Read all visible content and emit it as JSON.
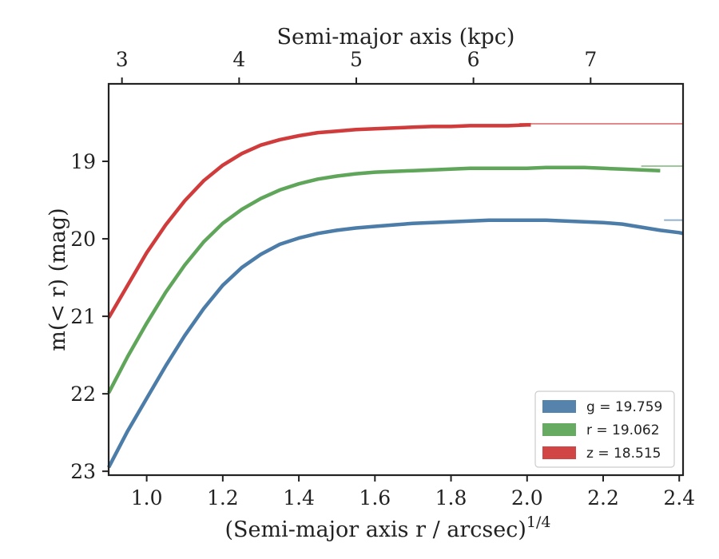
{
  "chart_data": {
    "type": "line",
    "xlabel_top": "Semi-major axis (kpc)",
    "xlabel_bottom": "(Semi-major axis r / arcsec)",
    "xlabel_bottom_sup": "1/4",
    "ylabel": "m(< r) (mag)",
    "xlim": [
      0.9,
      2.41
    ],
    "ylim": [
      23.05,
      18.0
    ],
    "y_inverted": true,
    "x_ticks": [
      "1.0",
      "1.2",
      "1.4",
      "1.6",
      "1.8",
      "2.0",
      "2.2",
      "2.4"
    ],
    "y_ticks": [
      "19",
      "20",
      "21",
      "22",
      "23"
    ],
    "top_ticks": [
      "3",
      "4",
      "5",
      "6",
      "7"
    ],
    "top_tick_positions_bottom_units": [
      0.935,
      1.243,
      1.551,
      1.859,
      2.167
    ],
    "legend_position": "lower-right",
    "series": [
      {
        "name": "g = 19.759",
        "color": "#4c7ca8",
        "asymptote": 19.759,
        "x": [
          0.9,
          0.95,
          1.0,
          1.05,
          1.1,
          1.15,
          1.2,
          1.25,
          1.3,
          1.35,
          1.4,
          1.45,
          1.5,
          1.55,
          1.6,
          1.65,
          1.7,
          1.75,
          1.8,
          1.85,
          1.9,
          1.95,
          2.0,
          2.05,
          2.1,
          2.15,
          2.2,
          2.25,
          2.3,
          2.35,
          2.4,
          2.41
        ],
        "y": [
          22.95,
          22.48,
          22.06,
          21.64,
          21.25,
          20.9,
          20.6,
          20.37,
          20.2,
          20.07,
          19.99,
          19.93,
          19.89,
          19.86,
          19.84,
          19.82,
          19.8,
          19.79,
          19.78,
          19.77,
          19.76,
          19.76,
          19.76,
          19.76,
          19.77,
          19.78,
          19.79,
          19.81,
          19.85,
          19.89,
          19.92,
          19.93
        ]
      },
      {
        "name": "r = 19.062",
        "color": "#5fa55a",
        "asymptote": 19.062,
        "x": [
          0.9,
          0.95,
          1.0,
          1.05,
          1.1,
          1.15,
          1.2,
          1.25,
          1.3,
          1.35,
          1.4,
          1.45,
          1.5,
          1.55,
          1.6,
          1.65,
          1.7,
          1.75,
          1.8,
          1.85,
          1.9,
          1.95,
          2.0,
          2.05,
          2.1,
          2.15,
          2.2,
          2.25,
          2.3,
          2.35
        ],
        "y": [
          21.99,
          21.52,
          21.09,
          20.69,
          20.34,
          20.04,
          19.8,
          19.62,
          19.48,
          19.37,
          19.29,
          19.23,
          19.19,
          19.16,
          19.14,
          19.13,
          19.12,
          19.11,
          19.1,
          19.09,
          19.09,
          19.09,
          19.09,
          19.08,
          19.08,
          19.08,
          19.09,
          19.1,
          19.11,
          19.12
        ]
      },
      {
        "name": "z = 18.515",
        "color": "#d03b3b",
        "asymptote": 18.515,
        "x": [
          0.9,
          0.95,
          1.0,
          1.05,
          1.1,
          1.15,
          1.2,
          1.25,
          1.3,
          1.35,
          1.4,
          1.45,
          1.5,
          1.55,
          1.6,
          1.65,
          1.7,
          1.75,
          1.8,
          1.85,
          1.9,
          1.95,
          2.0,
          2.01
        ],
        "y": [
          21.02,
          20.6,
          20.18,
          19.82,
          19.51,
          19.25,
          19.05,
          18.9,
          18.79,
          18.72,
          18.67,
          18.63,
          18.61,
          18.59,
          18.58,
          18.57,
          18.56,
          18.55,
          18.55,
          18.54,
          18.54,
          18.54,
          18.53,
          18.53
        ]
      }
    ]
  }
}
